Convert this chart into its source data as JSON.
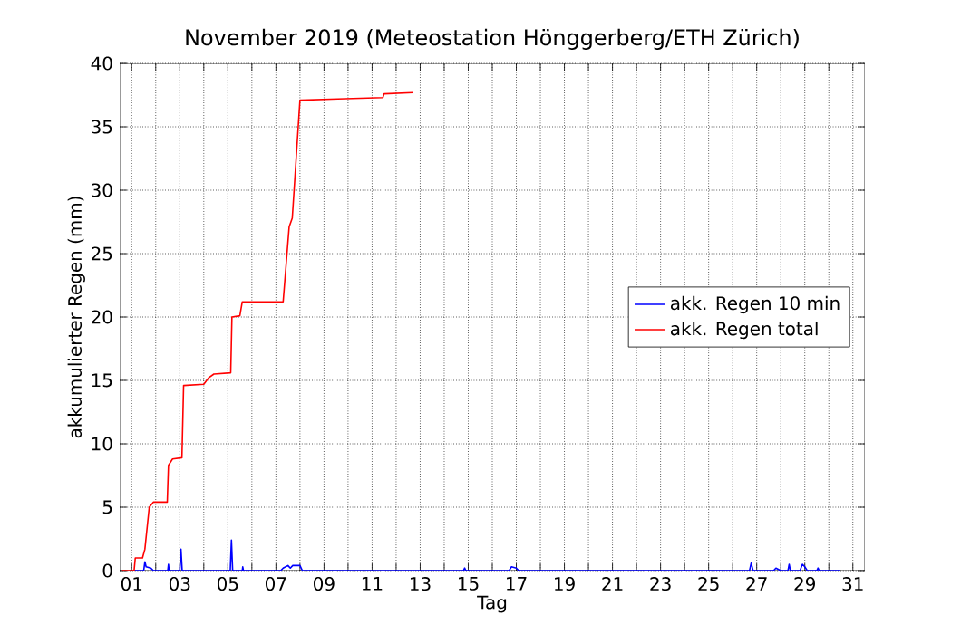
{
  "chart_data": {
    "type": "line",
    "title": "November 2019  (Meteostation Hönggerberg/ETH Zürich)",
    "xlabel": "Tag",
    "ylabel": "akkumulierter Regen (mm)",
    "xlim": [
      0.5,
      31.5
    ],
    "ylim": [
      0,
      40
    ],
    "xticks": [
      {
        "value": 1,
        "label": "01"
      },
      {
        "value": 2,
        "label": null
      },
      {
        "value": 3,
        "label": "03"
      },
      {
        "value": 4,
        "label": null
      },
      {
        "value": 5,
        "label": "05"
      },
      {
        "value": 6,
        "label": null
      },
      {
        "value": 7,
        "label": "07"
      },
      {
        "value": 8,
        "label": null
      },
      {
        "value": 9,
        "label": "09"
      },
      {
        "value": 10,
        "label": null
      },
      {
        "value": 11,
        "label": "11"
      },
      {
        "value": 12,
        "label": null
      },
      {
        "value": 13,
        "label": "13"
      },
      {
        "value": 14,
        "label": null
      },
      {
        "value": 15,
        "label": "15"
      },
      {
        "value": 16,
        "label": null
      },
      {
        "value": 17,
        "label": "17"
      },
      {
        "value": 18,
        "label": null
      },
      {
        "value": 19,
        "label": "19"
      },
      {
        "value": 20,
        "label": null
      },
      {
        "value": 21,
        "label": "21"
      },
      {
        "value": 22,
        "label": null
      },
      {
        "value": 23,
        "label": "23"
      },
      {
        "value": 24,
        "label": null
      },
      {
        "value": 25,
        "label": "25"
      },
      {
        "value": 26,
        "label": null
      },
      {
        "value": 27,
        "label": "27"
      },
      {
        "value": 28,
        "label": null
      },
      {
        "value": 29,
        "label": "29"
      },
      {
        "value": 30,
        "label": null
      },
      {
        "value": 31,
        "label": "31"
      }
    ],
    "yticks": [
      0,
      5,
      10,
      15,
      20,
      25,
      30,
      35,
      40
    ],
    "grid": true,
    "legend": "right",
    "series": [
      {
        "name": "akk. Regen 10 min",
        "color": "#0000ff",
        "x": [
          1.1,
          1.5,
          1.55,
          1.6,
          1.8,
          1.9,
          2.5,
          2.53,
          2.56,
          3.0,
          3.05,
          3.1,
          5.1,
          5.15,
          5.2,
          5.6,
          5.62,
          5.65,
          7.2,
          7.3,
          7.5,
          7.6,
          7.7,
          8.0,
          8.1,
          14.8,
          14.85,
          14.9,
          16.7,
          16.8,
          17.0,
          17.1,
          26.7,
          26.77,
          26.85,
          27.7,
          27.8,
          28.0,
          28.3,
          28.35,
          28.4,
          28.8,
          28.9,
          29.0,
          29.1,
          29.5,
          29.55,
          29.6,
          30.45
        ],
        "values": [
          0,
          0,
          0.7,
          0.3,
          0.2,
          0,
          0,
          0.5,
          0,
          0,
          1.7,
          0,
          0,
          2.4,
          0,
          0,
          0.3,
          0,
          0,
          0.2,
          0.4,
          0.2,
          0.4,
          0.4,
          0,
          0,
          0.2,
          0,
          0,
          0.3,
          0.2,
          0,
          0,
          0.6,
          0,
          0,
          0.2,
          0,
          0,
          0.5,
          0,
          0,
          0.5,
          0.3,
          0,
          0,
          0.2,
          0,
          0
        ]
      },
      {
        "name": "akk. Regen total",
        "color": "#ff0000",
        "x": [
          0.6,
          1.1,
          1.15,
          1.45,
          1.55,
          1.73,
          1.9,
          2.48,
          2.53,
          2.7,
          3.09,
          3.16,
          4.0,
          4.2,
          4.42,
          5.12,
          5.17,
          5.5,
          5.6,
          7.3,
          7.55,
          7.68,
          8.0,
          9.57,
          11.45,
          11.5,
          12.7
        ],
        "values": [
          0,
          0,
          1.0,
          1.0,
          1.7,
          5.0,
          5.4,
          5.4,
          8.3,
          8.8,
          8.9,
          14.6,
          14.7,
          15.2,
          15.5,
          15.6,
          20.0,
          20.1,
          21.2,
          21.2,
          27.1,
          27.8,
          37.1,
          37.2,
          37.3,
          37.6,
          37.7
        ]
      }
    ]
  }
}
